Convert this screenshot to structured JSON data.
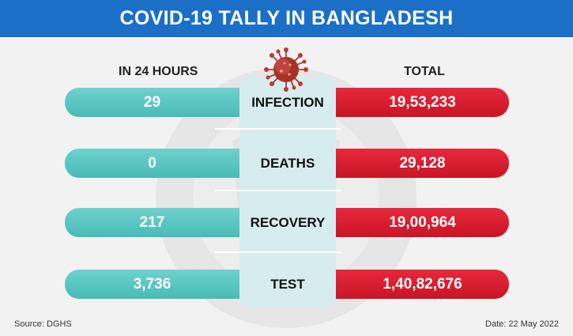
{
  "header": {
    "title": "COVID-19 TALLY IN BANGLADESH"
  },
  "columns": {
    "left": "IN 24 HOURS",
    "right": "TOTAL"
  },
  "rows": [
    {
      "label": "INFECTION",
      "day": "29",
      "total": "19,53,233"
    },
    {
      "label": "DEATHS",
      "day": "0",
      "total": "29,128"
    },
    {
      "label": "RECOVERY",
      "day": "217",
      "total": "19,00,964"
    },
    {
      "label": "TEST",
      "day": "3,736",
      "total": "1,40,82,676"
    }
  ],
  "footer": {
    "source": "Source: DGHS",
    "date": "Date: 22 May 2022"
  },
  "colors": {
    "header": "#1b6fc6",
    "teal": "#48bbb6",
    "red": "#d01a2c",
    "panel": "#d7ecef"
  },
  "icons": {
    "top": "coronavirus-icon",
    "background": "shield-watermark-icon"
  }
}
